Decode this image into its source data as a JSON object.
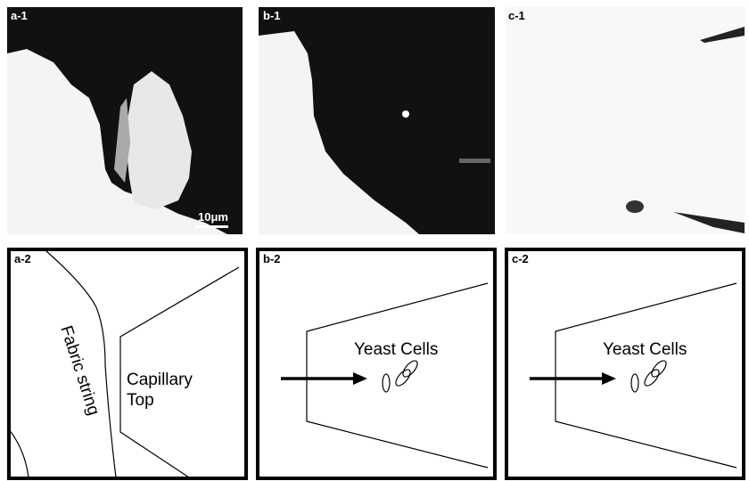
{
  "panels": {
    "top": [
      {
        "label": "a-1",
        "scale_bar": "10μm"
      },
      {
        "label": "b-1"
      },
      {
        "label": "c-1"
      }
    ],
    "bottom": [
      {
        "label": "a-2",
        "annotations": [
          {
            "lines": [
              "Fabric string"
            ]
          },
          {
            "lines": [
              "Capillary",
              "Top"
            ]
          }
        ]
      },
      {
        "label": "b-2",
        "annotations": [
          {
            "lines": [
              "Yeast Cells"
            ]
          }
        ]
      },
      {
        "label": "c-2",
        "annotations": [
          {
            "lines": [
              "Yeast Cells"
            ]
          }
        ]
      }
    ]
  }
}
